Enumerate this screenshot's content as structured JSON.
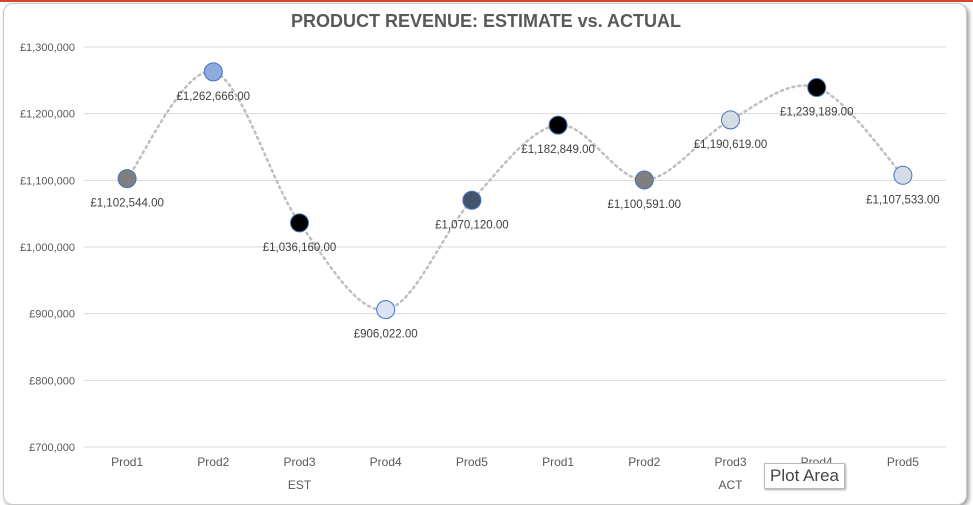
{
  "chart_data": {
    "type": "line",
    "title": "PRODUCT REVENUE: ESTIMATE vs. ACTUAL",
    "categories": [
      "Prod1",
      "Prod2",
      "Prod3",
      "Prod4",
      "Prod5",
      "Prod1",
      "Prod2",
      "Prod3",
      "Prod4",
      "Prod5"
    ],
    "groups": [
      {
        "label": "EST",
        "span": 5
      },
      {
        "label": "ACT",
        "span": 5
      }
    ],
    "values": [
      1102544,
      1262666,
      1036160,
      906022,
      1070120,
      1182849,
      1100591,
      1190619,
      1239189,
      1107533
    ],
    "data_labels": [
      "£1,102,544.00",
      "£1,262,666.00",
      "£1,036,160.00",
      "£906,022.00",
      "£1,070,120.00",
      "£1,182,849.00",
      "£1,100,591.00",
      "£1,190,619.00",
      "£1,239,189.00",
      "£1,107,533.00"
    ],
    "marker_colors": [
      "#7f7f7f",
      "#8faadc",
      "#000000",
      "#dae3f3",
      "#44546a",
      "#000000",
      "#7f7f7f",
      "#d6dce5",
      "#000000",
      "#d6dce5"
    ],
    "line_style": "dotted smooth",
    "line_color": "#bfbfbf",
    "ylim": [
      700000,
      1300000
    ],
    "yticks": [
      1300000,
      1200000,
      1100000,
      1000000,
      900000,
      800000,
      700000
    ],
    "ytick_labels": [
      "£1,300,000",
      "£1,200,000",
      "£1,100,000",
      "£1,000,000",
      "£900,000",
      "£800,000",
      "£700,000"
    ],
    "grid": true
  },
  "tooltip": "Plot Area"
}
